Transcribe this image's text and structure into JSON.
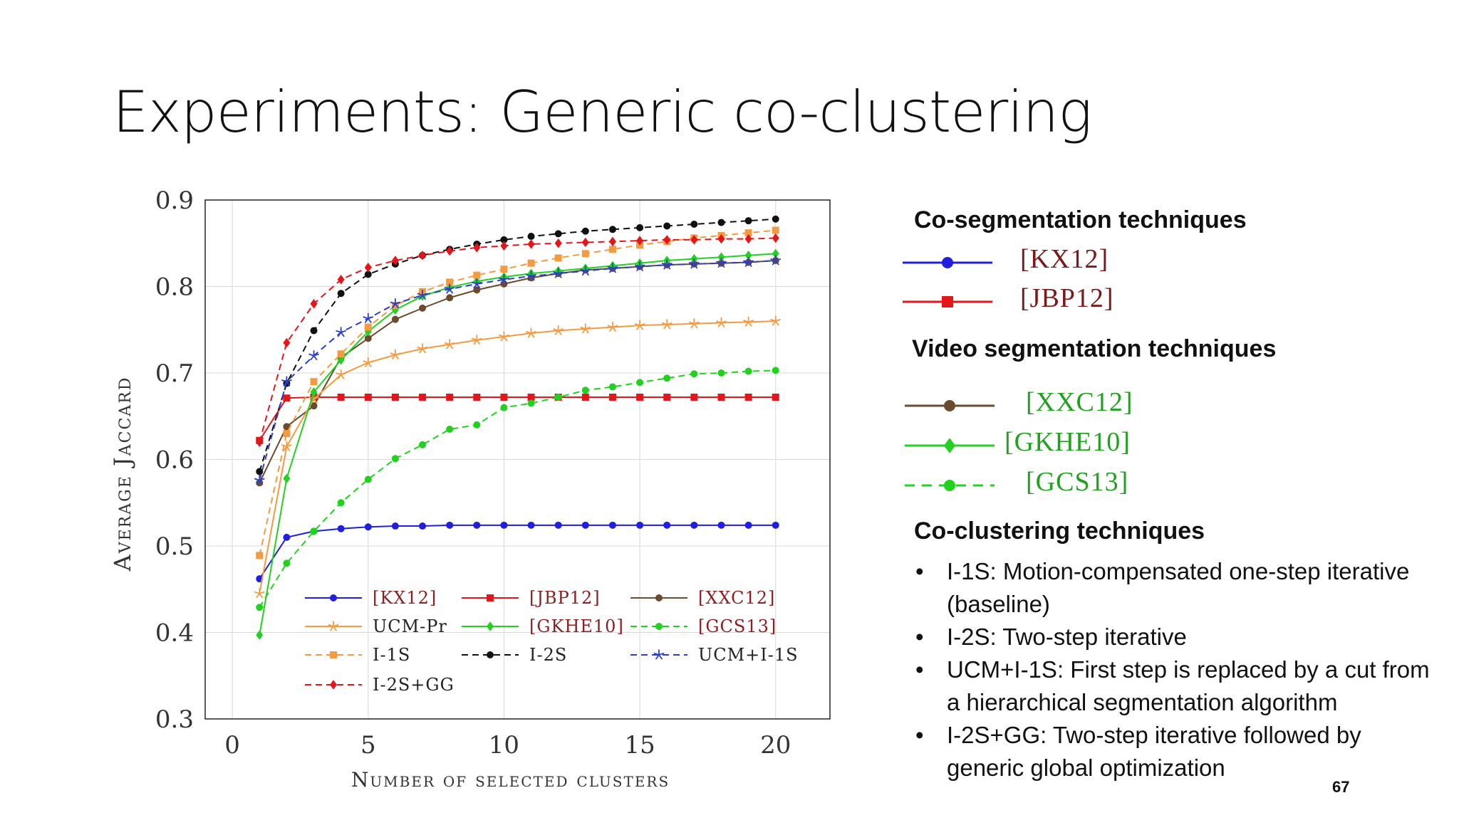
{
  "slide": {
    "title": "Experiments: Generic co-clustering",
    "page_number": "67"
  },
  "chart_data": {
    "type": "line",
    "xlabel": "Number of selected clusters",
    "ylabel": "Average Jaccard",
    "xlim": [
      -1,
      22
    ],
    "ylim": [
      0.3,
      0.9
    ],
    "xticks": [
      0,
      5,
      10,
      15,
      20
    ],
    "yticks": [
      0.3,
      0.4,
      0.5,
      0.6,
      0.7,
      0.8,
      0.9
    ],
    "grid": true,
    "legend_position": "bottom-left",
    "x": [
      1,
      2,
      3,
      4,
      5,
      6,
      7,
      8,
      9,
      10,
      11,
      12,
      13,
      14,
      15,
      16,
      17,
      18,
      19,
      20
    ],
    "series": [
      {
        "name": "[KX12]",
        "color": "#1f1fdd",
        "dash": "solid",
        "marker": "circle",
        "values": [
          0.462,
          0.51,
          0.517,
          0.52,
          0.522,
          0.523,
          0.523,
          0.524,
          0.524,
          0.524,
          0.524,
          0.524,
          0.524,
          0.524,
          0.524,
          0.524,
          0.524,
          0.524,
          0.524,
          0.524
        ]
      },
      {
        "name": "[JBP12]",
        "color": "#e3161b",
        "dash": "solid",
        "marker": "square",
        "values": [
          0.622,
          0.671,
          0.672,
          0.672,
          0.672,
          0.672,
          0.672,
          0.672,
          0.672,
          0.672,
          0.672,
          0.672,
          0.672,
          0.672,
          0.672,
          0.672,
          0.672,
          0.672,
          0.672,
          0.672
        ]
      },
      {
        "name": "[XXC12]",
        "color": "#6b4a2e",
        "dash": "solid",
        "marker": "circle",
        "values": [
          0.573,
          0.638,
          0.662,
          0.718,
          0.74,
          0.762,
          0.775,
          0.787,
          0.796,
          0.803,
          0.81,
          0.815,
          0.819,
          0.821,
          0.823,
          0.825,
          0.826,
          0.827,
          0.828,
          0.83
        ]
      },
      {
        "name": "UCM-Pr",
        "color": "#f39a42",
        "dash": "solid",
        "marker": "star",
        "values": [
          0.445,
          0.615,
          0.67,
          0.698,
          0.712,
          0.721,
          0.728,
          0.733,
          0.738,
          0.742,
          0.746,
          0.749,
          0.751,
          0.753,
          0.755,
          0.756,
          0.757,
          0.758,
          0.759,
          0.76
        ]
      },
      {
        "name": "[GKHE10]",
        "color": "#22d11f",
        "dash": "solid",
        "marker": "diamond",
        "values": [
          0.397,
          0.578,
          0.678,
          0.715,
          0.748,
          0.773,
          0.789,
          0.799,
          0.806,
          0.811,
          0.815,
          0.818,
          0.821,
          0.824,
          0.827,
          0.83,
          0.832,
          0.834,
          0.836,
          0.838
        ]
      },
      {
        "name": "[GCS13]",
        "color": "#22d11f",
        "dash": "dashed",
        "marker": "circle",
        "values": [
          0.429,
          0.48,
          0.517,
          0.55,
          0.577,
          0.601,
          0.617,
          0.635,
          0.64,
          0.66,
          0.665,
          0.672,
          0.68,
          0.684,
          0.689,
          0.694,
          0.699,
          0.7,
          0.702,
          0.703
        ]
      },
      {
        "name": "I-1S",
        "color": "#f39a42",
        "dash": "dashed",
        "marker": "square",
        "values": [
          0.489,
          0.63,
          0.69,
          0.722,
          0.753,
          0.778,
          0.794,
          0.805,
          0.813,
          0.82,
          0.827,
          0.833,
          0.838,
          0.843,
          0.848,
          0.852,
          0.856,
          0.859,
          0.862,
          0.865
        ]
      },
      {
        "name": "I-2S",
        "color": "#111111",
        "dash": "dashed",
        "marker": "circle",
        "values": [
          0.586,
          0.688,
          0.749,
          0.792,
          0.814,
          0.826,
          0.836,
          0.843,
          0.849,
          0.854,
          0.858,
          0.861,
          0.864,
          0.866,
          0.868,
          0.87,
          0.872,
          0.874,
          0.876,
          0.878
        ]
      },
      {
        "name": "UCM+I-1S",
        "color": "#2b3fc9",
        "dash": "dashed",
        "marker": "star",
        "values": [
          0.576,
          0.69,
          0.72,
          0.747,
          0.763,
          0.78,
          0.79,
          0.797,
          0.803,
          0.808,
          0.812,
          0.815,
          0.818,
          0.821,
          0.823,
          0.825,
          0.826,
          0.827,
          0.828,
          0.83
        ]
      },
      {
        "name": "I-2S+GG",
        "color": "#e3161b",
        "dash": "dashed",
        "marker": "diamond",
        "values": [
          0.62,
          0.735,
          0.78,
          0.808,
          0.822,
          0.83,
          0.836,
          0.841,
          0.845,
          0.847,
          0.849,
          0.85,
          0.851,
          0.852,
          0.853,
          0.854,
          0.854,
          0.855,
          0.855,
          0.856
        ]
      }
    ]
  },
  "legend_panel": {
    "sections": [
      {
        "heading": "Co-segmentation techniques",
        "items": [
          {
            "label": "[KX12]",
            "color": "#1f1fdd",
            "dash": "solid",
            "marker": "circle",
            "label_color": "#7a1a1a"
          },
          {
            "label": "[JBP12]",
            "color": "#e3161b",
            "dash": "solid",
            "marker": "square",
            "label_color": "#7a1a1a"
          }
        ]
      },
      {
        "heading": "Video segmentation techniques",
        "items": [
          {
            "label": "[XXC12]",
            "color": "#6b4a2e",
            "dash": "solid",
            "marker": "circle",
            "label_color": "#22a11f"
          },
          {
            "label": "[GKHE10]",
            "color": "#22d11f",
            "dash": "solid",
            "marker": "diamond",
            "label_color": "#22a11f"
          },
          {
            "label": "[GCS13]",
            "color": "#22d11f",
            "dash": "dashed",
            "marker": "circle",
            "label_color": "#22a11f"
          }
        ]
      },
      {
        "heading": "Co-clustering techniques",
        "items": []
      }
    ],
    "bullets": [
      "I-1S: Motion-compensated one-step iterative (baseline)",
      "I-2S: Two-step iterative",
      "UCM+I-1S: First step is replaced by a cut from a hierarchical segmentation algorithm",
      "I-2S+GG: Two-step iterative followed by generic global optimization"
    ]
  }
}
